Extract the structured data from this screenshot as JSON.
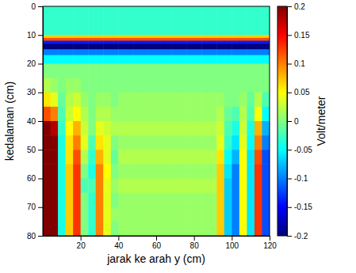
{
  "chart_data": {
    "type": "heatmap",
    "x_label": "jarak ke arah y (cm)",
    "y_label": "kedalaman (cm)",
    "xlim": [
      0,
      120
    ],
    "ylim": [
      0,
      80
    ],
    "xticks": [
      20,
      40,
      60,
      80,
      100,
      120
    ],
    "yticks": [
      0,
      10,
      20,
      30,
      40,
      50,
      60,
      70,
      80
    ],
    "x_edges": [
      0,
      4,
      8,
      12,
      16,
      20,
      24,
      28,
      32,
      36,
      40,
      44,
      48,
      52,
      56,
      60,
      64,
      68,
      72,
      76,
      80,
      84,
      88,
      92,
      96,
      100,
      104,
      108,
      112,
      116,
      120
    ],
    "y_edges": [
      0,
      10,
      11,
      12,
      13,
      15,
      17,
      20,
      25,
      30,
      35,
      40,
      45,
      50,
      55,
      60,
      65,
      70,
      75,
      80
    ],
    "values": [
      [
        -0.03,
        -0.03,
        -0.03,
        -0.03,
        -0.03,
        -0.03,
        -0.03,
        -0.03,
        -0.03,
        -0.03,
        -0.03,
        -0.03,
        -0.03,
        -0.03,
        -0.03,
        -0.03,
        -0.03,
        -0.03,
        -0.03,
        -0.03,
        -0.03,
        -0.03,
        -0.03,
        -0.03,
        -0.03,
        -0.03,
        -0.03,
        -0.03,
        -0.03,
        -0.03
      ],
      [
        0.07,
        0.07,
        0.07,
        0.07,
        0.07,
        0.07,
        0.07,
        0.07,
        0.07,
        0.07,
        0.07,
        0.07,
        0.07,
        0.07,
        0.07,
        0.07,
        0.07,
        0.07,
        0.07,
        0.07,
        0.07,
        0.07,
        0.07,
        0.07,
        0.07,
        0.07,
        0.07,
        0.07,
        0.07,
        0.07
      ],
      [
        0.12,
        0.12,
        0.12,
        0.12,
        0.12,
        0.12,
        0.12,
        0.12,
        0.12,
        0.12,
        0.12,
        0.12,
        0.12,
        0.12,
        0.12,
        0.12,
        0.12,
        0.12,
        0.12,
        0.12,
        0.12,
        0.12,
        0.12,
        0.12,
        0.12,
        0.12,
        0.12,
        0.12,
        0.12,
        0.12
      ],
      [
        -0.14,
        -0.14,
        -0.14,
        -0.14,
        -0.14,
        -0.14,
        -0.14,
        -0.14,
        -0.14,
        -0.14,
        -0.14,
        -0.14,
        -0.14,
        -0.14,
        -0.14,
        -0.14,
        -0.14,
        -0.14,
        -0.14,
        -0.14,
        -0.14,
        -0.14,
        -0.14,
        -0.14,
        -0.14,
        -0.14,
        -0.14,
        -0.14,
        -0.14,
        -0.14
      ],
      [
        -0.2,
        -0.2,
        -0.2,
        -0.2,
        -0.2,
        -0.2,
        -0.2,
        -0.2,
        -0.2,
        -0.2,
        -0.2,
        -0.2,
        -0.2,
        -0.2,
        -0.2,
        -0.2,
        -0.2,
        -0.2,
        -0.2,
        -0.2,
        -0.2,
        -0.2,
        -0.2,
        -0.2,
        -0.2,
        -0.2,
        -0.2,
        -0.2,
        -0.2,
        -0.2
      ],
      [
        -0.1,
        -0.1,
        -0.1,
        -0.1,
        -0.1,
        -0.1,
        -0.1,
        -0.1,
        -0.1,
        -0.1,
        -0.1,
        -0.1,
        -0.1,
        -0.1,
        -0.1,
        -0.1,
        -0.1,
        -0.1,
        -0.1,
        -0.1,
        -0.1,
        -0.1,
        -0.1,
        -0.1,
        -0.1,
        -0.1,
        -0.1,
        -0.1,
        -0.1,
        -0.1
      ],
      [
        -0.05,
        -0.05,
        -0.05,
        -0.05,
        -0.05,
        -0.05,
        -0.05,
        -0.05,
        -0.05,
        -0.05,
        -0.05,
        -0.05,
        -0.05,
        -0.05,
        -0.05,
        -0.05,
        -0.05,
        -0.05,
        -0.05,
        -0.05,
        -0.05,
        -0.05,
        -0.05,
        -0.05,
        -0.05,
        -0.05,
        -0.05,
        -0.05,
        -0.05,
        -0.05
      ],
      [
        0,
        0,
        0,
        0,
        0,
        0,
        0,
        0,
        0,
        0,
        0,
        0,
        0,
        0,
        0,
        0,
        0,
        0,
        0,
        0,
        0,
        0,
        0,
        0,
        0,
        0,
        0,
        0,
        0,
        0
      ],
      [
        0.02,
        0.01,
        0,
        0.01,
        0.01,
        0,
        0,
        0,
        0,
        0,
        0,
        0,
        0,
        0,
        0,
        0,
        0,
        0,
        0,
        0,
        0,
        0,
        0,
        0,
        0,
        0,
        0,
        0,
        0,
        0
      ],
      [
        0.06,
        0.04,
        -0.01,
        0.02,
        0.03,
        0.01,
        0,
        0.01,
        0.01,
        0,
        0.01,
        0.01,
        0.01,
        0.01,
        0.01,
        0.01,
        0.01,
        0.01,
        0.01,
        0.01,
        0.01,
        0.01,
        0.01,
        0.01,
        0,
        0,
        0.01,
        -0.01,
        0.02,
        -0.02
      ],
      [
        0.12,
        0.1,
        -0.02,
        0.03,
        0.05,
        0.02,
        0,
        0.02,
        0.02,
        0.01,
        0.01,
        0.01,
        0.01,
        0.01,
        0.01,
        0.01,
        0.01,
        0.01,
        0.01,
        0.01,
        0.01,
        0.01,
        0.01,
        0.02,
        -0.01,
        -0.02,
        0.02,
        -0.02,
        0.05,
        -0.05
      ],
      [
        0.2,
        0.18,
        -0.03,
        0.05,
        0.08,
        0.03,
        0,
        0.04,
        0.03,
        0.02,
        0.02,
        0.02,
        0.02,
        0.02,
        0.02,
        0.02,
        0.02,
        0.02,
        0.02,
        0.02,
        0.02,
        0.02,
        0.02,
        0.03,
        -0.02,
        -0.04,
        0.03,
        -0.04,
        0.08,
        -0.08
      ],
      [
        0.2,
        0.2,
        -0.04,
        0.06,
        0.1,
        0.04,
        -0.02,
        0.06,
        0.04,
        0,
        0.01,
        0.01,
        0.01,
        0.01,
        0.01,
        0.01,
        0.01,
        0.01,
        0.01,
        0.01,
        0.01,
        0.01,
        0.01,
        0.04,
        -0.03,
        -0.06,
        0.04,
        -0.05,
        0.1,
        -0.1
      ],
      [
        0.2,
        0.2,
        -0.04,
        0.06,
        0.12,
        0.02,
        -0.03,
        0.08,
        0.04,
        -0.01,
        0.02,
        0.02,
        0.02,
        0.02,
        0.02,
        0.02,
        0.02,
        0.02,
        0.02,
        0.02,
        0.02,
        0.02,
        0.02,
        0.06,
        -0.05,
        -0.08,
        0.05,
        -0.06,
        0.12,
        -0.12
      ],
      [
        0.2,
        0.2,
        -0.04,
        0.07,
        0.13,
        0,
        -0.04,
        0.1,
        0.05,
        0,
        0.01,
        0.01,
        0.01,
        0.01,
        0.01,
        0.01,
        0.01,
        0.01,
        0.01,
        0.01,
        0.01,
        0.01,
        0.01,
        0.07,
        -0.06,
        -0.1,
        0.05,
        -0.06,
        0.13,
        -0.12
      ],
      [
        0.2,
        0.2,
        -0.04,
        0.07,
        0.13,
        -0.02,
        -0.02,
        0.1,
        0.04,
        0.01,
        0.02,
        0.02,
        0.02,
        0.02,
        0.02,
        0.02,
        0.02,
        0.02,
        0.02,
        0.02,
        0.02,
        0.02,
        0.02,
        0.07,
        -0.07,
        -0.1,
        0.05,
        -0.06,
        0.13,
        -0.12
      ],
      [
        0.2,
        0.2,
        -0.04,
        0.07,
        0.13,
        0,
        -0.03,
        0.1,
        0.04,
        0,
        0.01,
        0.01,
        0.01,
        0.01,
        0.01,
        0.01,
        0.01,
        0.01,
        0.01,
        0.01,
        0.01,
        0.01,
        0.01,
        0.07,
        -0.07,
        -0.1,
        0.05,
        -0.06,
        0.13,
        -0.12
      ],
      [
        0.2,
        0.2,
        -0.04,
        0.07,
        0.13,
        0,
        -0.03,
        0.1,
        0.04,
        0.01,
        0.01,
        0.01,
        0.01,
        0.01,
        0.01,
        0.01,
        0.01,
        0.01,
        0.01,
        0.01,
        0.01,
        0.01,
        0.01,
        0.07,
        -0.07,
        -0.1,
        0.05,
        -0.06,
        0.13,
        -0.12
      ],
      [
        0.2,
        0.2,
        -0.04,
        0.07,
        0.13,
        0,
        -0.03,
        0.1,
        0.04,
        0,
        0.01,
        0.01,
        0.01,
        0.01,
        0.01,
        0.01,
        0.01,
        0.01,
        0.01,
        0.01,
        0.01,
        0.01,
        0.01,
        0.07,
        -0.07,
        -0.1,
        0.05,
        -0.06,
        0.13,
        -0.12
      ]
    ],
    "colorbar": {
      "label": "Volt/meter",
      "range": [
        -0.2,
        0.2
      ],
      "ticks": [
        -0.2,
        -0.15,
        -0.1,
        -0.05,
        0,
        0.05,
        0.1,
        0.15,
        0.2
      ]
    }
  }
}
